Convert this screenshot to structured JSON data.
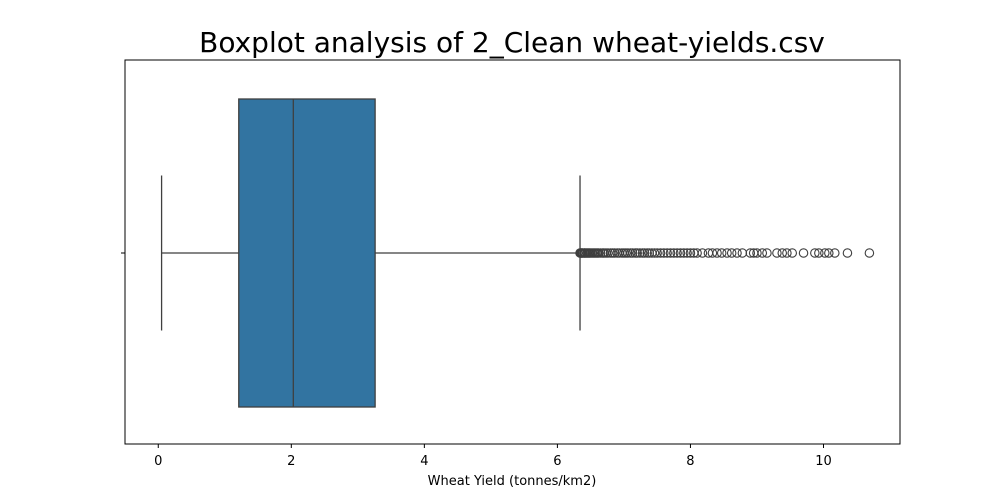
{
  "chart_data": {
    "type": "box",
    "title": "Boxplot analysis of 2_Clean wheat-yields.csv",
    "xlabel": "Wheat Yield (tonnes/km2)",
    "ylabel": "",
    "xlim": [
      -0.5,
      11.15
    ],
    "xticks": [
      0,
      2,
      4,
      6,
      8,
      10
    ],
    "orientation": "horizontal",
    "grid": false,
    "box_color": "#3274a1",
    "line_color": "#3f3f3f",
    "stats": {
      "whisker_low": 0.05,
      "q1": 1.21,
      "median": 2.03,
      "q3": 3.26,
      "whisker_high": 6.34
    },
    "outliers": [
      6.34,
      6.35,
      6.36,
      6.37,
      6.38,
      6.4,
      6.41,
      6.42,
      6.44,
      6.45,
      6.47,
      6.48,
      6.5,
      6.52,
      6.54,
      6.56,
      6.58,
      6.6,
      6.62,
      6.65,
      6.68,
      6.7,
      6.73,
      6.76,
      6.8,
      6.83,
      6.86,
      6.9,
      6.93,
      6.97,
      7.0,
      7.03,
      7.06,
      7.1,
      7.13,
      7.17,
      7.2,
      7.24,
      7.28,
      7.31,
      7.35,
      7.38,
      7.42,
      7.46,
      7.5,
      7.55,
      7.6,
      7.65,
      7.7,
      7.75,
      7.8,
      7.85,
      7.9,
      7.95,
      8.0,
      8.05,
      8.1,
      8.18,
      8.27,
      8.33,
      8.4,
      8.47,
      8.55,
      8.62,
      8.7,
      8.78,
      8.9,
      8.95,
      9.0,
      9.08,
      9.15,
      9.3,
      9.38,
      9.45,
      9.53,
      9.7,
      9.87,
      9.93,
      10.02,
      10.08,
      10.17,
      10.36,
      10.69
    ]
  }
}
